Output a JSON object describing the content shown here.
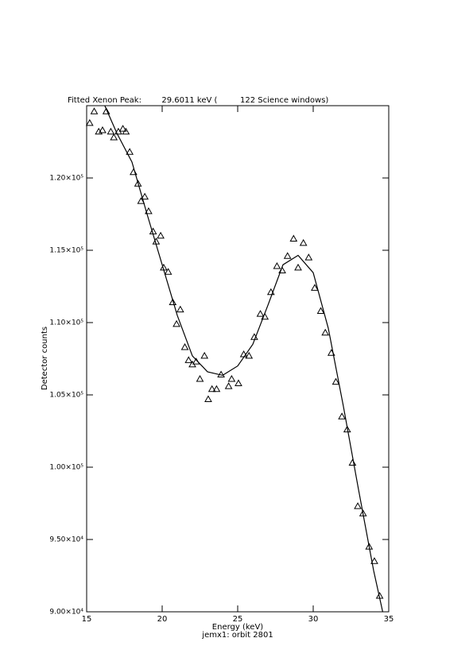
{
  "chart_data": {
    "type": "scatter",
    "title": "Fitted Xenon Peak:        29.6011 keV (         122 Science windows)",
    "xlabel": "Energy (keV)",
    "ylabel": "Detector counts",
    "caption": "jemx1: orbit 2801",
    "xlim": [
      15,
      35
    ],
    "xticks": [
      15,
      20,
      25,
      30,
      35
    ],
    "ylim": [
      90000,
      125000
    ],
    "yticks": [
      {
        "value": 90000,
        "label": "9.00×10⁴"
      },
      {
        "value": 95000,
        "label": "9.50×10⁴"
      },
      {
        "value": 100000,
        "label": "1.00×10⁵"
      },
      {
        "value": 105000,
        "label": "1.05×10⁵"
      },
      {
        "value": 110000,
        "label": "1.10×10⁵"
      },
      {
        "value": 115000,
        "label": "1.15×10⁵"
      },
      {
        "value": 120000,
        "label": "1.20×10⁵"
      }
    ],
    "color": "#000000",
    "series": [
      {
        "marker": "triangle",
        "x": [
          15.2,
          15.5,
          15.8,
          16.05,
          16.3,
          16.6,
          16.8,
          17.1,
          17.4,
          17.6,
          17.85,
          18.1,
          18.4,
          18.6,
          18.85,
          19.1,
          19.4,
          19.6,
          19.9,
          20.1,
          20.4,
          20.7,
          20.95,
          21.2,
          21.5,
          21.75,
          22.0,
          22.25,
          22.5,
          22.8,
          23.05,
          23.3,
          23.6,
          23.9,
          24.4,
          24.6,
          25.05,
          25.4,
          25.75,
          26.1,
          26.5,
          26.8,
          27.2,
          27.6,
          27.95,
          28.3,
          28.7,
          29.0,
          29.35,
          29.7,
          30.1,
          30.5,
          30.8,
          31.2,
          31.5,
          31.9,
          32.25,
          32.6,
          32.95,
          33.3,
          33.7,
          34.05,
          34.4
        ],
        "values": [
          123800,
          124600,
          123200,
          123300,
          124600,
          123200,
          122800,
          123200,
          123400,
          123200,
          121800,
          120400,
          119600,
          118400,
          118700,
          117700,
          116300,
          115600,
          116000,
          113800,
          113500,
          111400,
          109900,
          110900,
          108300,
          107400,
          107100,
          107300,
          106100,
          107700,
          104700,
          105400,
          105400,
          106400,
          105600,
          106100,
          105800,
          107800,
          107700,
          109000,
          110600,
          110400,
          112100,
          113900,
          113600,
          114600,
          115800,
          113800,
          115500,
          114500,
          112400,
          110800,
          109300,
          107900,
          105900,
          103500,
          102600,
          100300,
          97300,
          96800,
          94500,
          93500,
          91100
        ]
      },
      {
        "marker": "line",
        "x": [
          16.2,
          17,
          18,
          19,
          20,
          21,
          22,
          23,
          24,
          25,
          26,
          27,
          28,
          29,
          30,
          31,
          32,
          33,
          34,
          34.6
        ],
        "values": [
          125000,
          123100,
          121100,
          117500,
          114000,
          110500,
          107700,
          106600,
          106350,
          107000,
          108500,
          111200,
          114000,
          114650,
          113450,
          109600,
          104200,
          98450,
          92850,
          90000
        ]
      }
    ]
  }
}
